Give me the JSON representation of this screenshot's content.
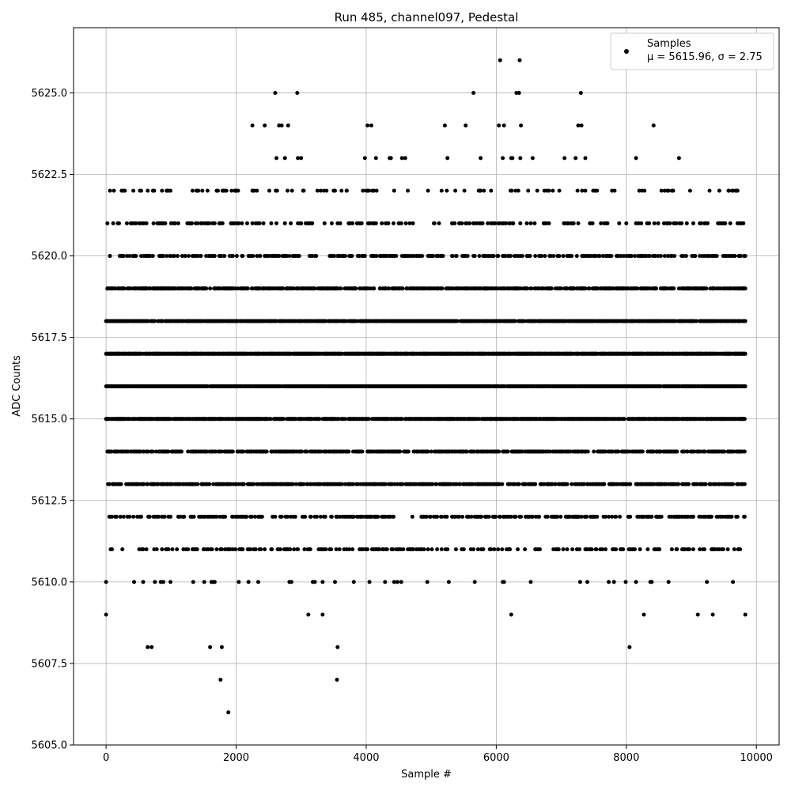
{
  "chart_data": {
    "type": "scatter",
    "title": "Run 485, channel097, Pedestal",
    "xlabel": "Sample #",
    "ylabel": "ADC Counts",
    "xlim": [
      -500,
      10350
    ],
    "ylim": [
      5605.0,
      5627.0
    ],
    "xticks": [
      0,
      2000,
      4000,
      6000,
      8000,
      10000
    ],
    "xtick_labels": [
      "0",
      "2000",
      "4000",
      "6000",
      "8000",
      "10000"
    ],
    "yticks": [
      5605.0,
      5607.5,
      5610.0,
      5612.5,
      5615.0,
      5617.5,
      5620.0,
      5622.5,
      5625.0
    ],
    "ytick_labels": [
      "5605.0",
      "5607.5",
      "5610.0",
      "5612.5",
      "5615.0",
      "5617.5",
      "5620.0",
      "5622.5",
      "5625.0"
    ],
    "grid": true,
    "legend_position": "top-right",
    "legend": {
      "series_label": "Samples",
      "stats_label": "μ = 5615.96, σ = 2.75"
    },
    "marker_color": "#000000",
    "x_range_samples": [
      0,
      9830
    ],
    "series": [
      {
        "name": "Samples",
        "points": [
          [
            0,
            5609
          ],
          [
            20,
            5619
          ],
          [
            60,
            5620
          ],
          [
            120,
            5622
          ],
          [
            200,
            5621
          ],
          [
            250,
            5620
          ],
          [
            320,
            5620
          ],
          [
            380,
            5621
          ],
          [
            450,
            5620
          ],
          [
            520,
            5621
          ],
          [
            640,
            5608
          ],
          [
            700,
            5608
          ],
          [
            720,
            5620
          ],
          [
            790,
            5621
          ],
          [
            930,
            5622
          ],
          [
            960,
            5622
          ],
          [
            1300,
            5621
          ],
          [
            1350,
            5620
          ],
          [
            1380,
            5621
          ],
          [
            1420,
            5622
          ],
          [
            1480,
            5622
          ],
          [
            1560,
            5622
          ],
          [
            1600,
            5608
          ],
          [
            1760,
            5607
          ],
          [
            1780,
            5608
          ],
          [
            1880,
            5606
          ],
          [
            2000,
            5622
          ],
          [
            2030,
            5621
          ],
          [
            2250,
            5624
          ],
          [
            2280,
            5622
          ],
          [
            2330,
            5621
          ],
          [
            2440,
            5624
          ],
          [
            2600,
            5625
          ],
          [
            2620,
            5623
          ],
          [
            2660,
            5624
          ],
          [
            2700,
            5624
          ],
          [
            2750,
            5623
          ],
          [
            2800,
            5624
          ],
          [
            2860,
            5622
          ],
          [
            2940,
            5625
          ],
          [
            2950,
            5623
          ],
          [
            3000,
            5623
          ],
          [
            3300,
            5622
          ],
          [
            3560,
            5608
          ],
          [
            3550,
            5607
          ],
          [
            3620,
            5622
          ],
          [
            3700,
            5622
          ],
          [
            3980,
            5623
          ],
          [
            4020,
            5624
          ],
          [
            4080,
            5624
          ],
          [
            4150,
            5623
          ],
          [
            4360,
            5623
          ],
          [
            4380,
            5623
          ],
          [
            4550,
            5623
          ],
          [
            4600,
            5623
          ],
          [
            5210,
            5624
          ],
          [
            5250,
            5623
          ],
          [
            5530,
            5624
          ],
          [
            5650,
            5625
          ],
          [
            5760,
            5623
          ],
          [
            6060,
            5626
          ],
          [
            6040,
            5624
          ],
          [
            6100,
            5623
          ],
          [
            6120,
            5624
          ],
          [
            6230,
            5623
          ],
          [
            6250,
            5623
          ],
          [
            6310,
            5625
          ],
          [
            6360,
            5626
          ],
          [
            6350,
            5625
          ],
          [
            6380,
            5624
          ],
          [
            6370,
            5623
          ],
          [
            6560,
            5623
          ],
          [
            7050,
            5623
          ],
          [
            7220,
            5623
          ],
          [
            7260,
            5624
          ],
          [
            7300,
            5625
          ],
          [
            7310,
            5624
          ],
          [
            7370,
            5623
          ],
          [
            8150,
            5623
          ],
          [
            8420,
            5624
          ],
          [
            8810,
            5623
          ],
          [
            9570,
            5622
          ],
          [
            6230,
            5609
          ],
          [
            8050,
            5608
          ],
          [
            8270,
            5609
          ],
          [
            9100,
            5609
          ],
          [
            9330,
            5609
          ],
          [
            9830,
            5609
          ],
          [
            3110,
            5609
          ],
          [
            3330,
            5609
          ]
        ]
      }
    ]
  }
}
